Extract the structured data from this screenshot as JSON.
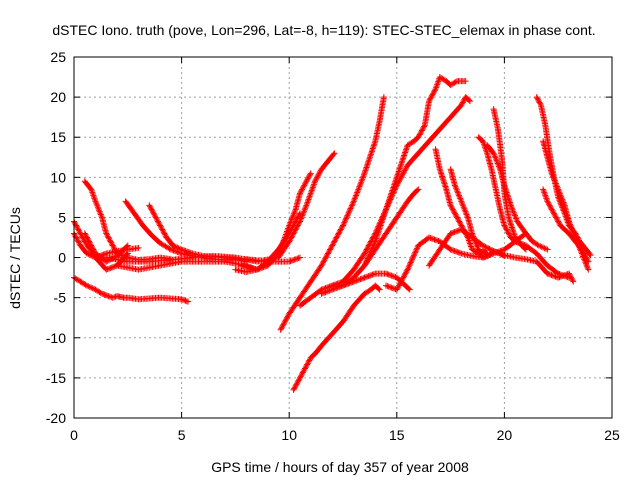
{
  "chart_data": {
    "type": "scatter",
    "title": "dSTEC Iono. truth (pove, Lon=296, Lat=-8, h=119): STEC-STEC_elemax in phase cont.",
    "xlabel": "GPS time / hours of day 357 of year 2008",
    "ylabel": "dSTEC  / TECUs",
    "xlim": [
      0,
      25
    ],
    "ylim": [
      -20,
      25
    ],
    "xticks": [
      0,
      5,
      10,
      15,
      20,
      25
    ],
    "yticks": [
      -20,
      -15,
      -10,
      -5,
      0,
      5,
      10,
      15,
      20,
      25
    ],
    "grid": true,
    "legend": "none",
    "marker": "plus",
    "color": "#ff0000",
    "series": [
      {
        "x": [
          0.0,
          0.3,
          0.6,
          1.0,
          1.5,
          2.0,
          2.5,
          3.0
        ],
        "y": [
          3.0,
          1.5,
          0.5,
          0.0,
          0.5,
          0.8,
          1.0,
          1.2
        ]
      },
      {
        "x": [
          0.0,
          0.5,
          1.0,
          1.5,
          2.0,
          2.5
        ],
        "y": [
          4.5,
          2.0,
          0.0,
          -1.5,
          -1.0,
          0.5
        ]
      },
      {
        "x": [
          0.5,
          1.0,
          1.5,
          2.0,
          2.5
        ],
        "y": [
          3.0,
          0.5,
          -0.5,
          0.2,
          1.5
        ]
      },
      {
        "x": [
          0.0,
          0.3,
          0.6,
          1.0,
          1.3,
          1.6,
          1.8,
          2.0,
          2.3,
          2.5,
          3.0,
          3.5,
          4.0,
          4.5,
          5.0,
          5.3
        ],
        "y": [
          -2.5,
          -3.0,
          -3.5,
          -4.0,
          -4.5,
          -4.8,
          -5.0,
          -4.8,
          -5.0,
          -5.0,
          -5.2,
          -5.1,
          -5.0,
          -5.1,
          -5.2,
          -5.5
        ]
      },
      {
        "x": [
          0.5,
          0.8,
          1.0,
          1.3,
          1.5,
          1.8,
          2.0,
          2.5,
          3.0,
          3.5,
          4.0,
          4.5
        ],
        "y": [
          9.5,
          8.5,
          7.0,
          5.0,
          3.0,
          1.5,
          0.5,
          0.0,
          -0.3,
          -0.2,
          0.0,
          -0.2
        ]
      },
      {
        "x": [
          2.4,
          2.8,
          3.2,
          3.6,
          4.0,
          4.5,
          5.0,
          5.5,
          6.0,
          6.5,
          7.0,
          7.5,
          8.0
        ],
        "y": [
          7.0,
          5.5,
          4.0,
          2.8,
          1.8,
          1.0,
          0.5,
          0.2,
          0.0,
          -0.2,
          -0.3,
          -0.2,
          -0.5
        ]
      },
      {
        "x": [
          3.5,
          3.8,
          4.0,
          4.3,
          4.6,
          5.0,
          5.5,
          6.0,
          7.0,
          8.0,
          9.0,
          10.0,
          10.5
        ],
        "y": [
          6.5,
          5.0,
          4.0,
          2.5,
          1.5,
          1.0,
          0.5,
          0.2,
          0.0,
          -0.2,
          -0.5,
          -0.5,
          0.0
        ]
      },
      {
        "x": [
          2.0,
          3.0,
          4.0,
          5.0,
          6.0,
          7.0,
          8.0,
          8.5
        ],
        "y": [
          -1.0,
          -1.5,
          -1.0,
          -0.5,
          -0.5,
          -0.5,
          -1.0,
          -1.5
        ]
      },
      {
        "x": [
          1.5,
          2.5,
          3.5,
          4.5,
          5.5,
          6.5,
          7.5,
          8.5,
          9.5,
          10.0,
          10.5,
          10.8,
          11.0,
          11.2,
          11.5,
          11.8,
          12.1
        ],
        "y": [
          0.0,
          -0.5,
          -0.5,
          -0.3,
          0.0,
          0.2,
          0.0,
          -0.5,
          0.0,
          2.0,
          4.5,
          6.5,
          8.0,
          9.5,
          11.0,
          12.0,
          13.0
        ]
      },
      {
        "x": [
          7.5,
          8.0,
          8.5,
          9.0,
          9.5,
          9.8,
          10.0,
          10.3,
          10.5,
          10.8,
          11.0
        ],
        "y": [
          -1.5,
          -1.8,
          -1.5,
          -1.0,
          0.5,
          2.5,
          4.0,
          6.0,
          8.0,
          9.5,
          10.5
        ]
      },
      {
        "x": [
          7.8,
          8.5,
          9.0,
          9.5,
          10.0,
          10.5
        ],
        "y": [
          -1.0,
          -1.5,
          -0.5,
          1.0,
          3.0,
          5.5
        ]
      },
      {
        "x": [
          9.6,
          10.0,
          10.5,
          11.0,
          11.5,
          12.0,
          12.5,
          13.0,
          13.5,
          14.0,
          14.2,
          14.4
        ],
        "y": [
          -9.0,
          -7.0,
          -5.0,
          -3.0,
          -1.0,
          1.5,
          4.0,
          7.0,
          10.5,
          14.5,
          17.0,
          20.0
        ]
      },
      {
        "x": [
          10.2,
          10.5,
          10.8,
          11.0,
          11.2,
          11.5,
          12.0,
          12.5,
          13.0,
          13.5,
          13.8,
          14.0,
          14.2
        ],
        "y": [
          -16.5,
          -15.0,
          -13.5,
          -12.5,
          -12.0,
          -11.0,
          -9.5,
          -8.0,
          -6.0,
          -4.5,
          -4.0,
          -3.5,
          -4.0
        ]
      },
      {
        "x": [
          10.5,
          11.0,
          11.5,
          12.0,
          12.5,
          13.0,
          13.5,
          14.0,
          14.5,
          15.0,
          15.2,
          15.4,
          15.6
        ],
        "y": [
          -6.0,
          -5.0,
          -4.0,
          -3.5,
          -3.5,
          -3.0,
          -2.5,
          -2.0,
          -2.0,
          -2.5,
          -3.0,
          -3.5,
          -4.0
        ]
      },
      {
        "x": [
          11.5,
          12.0,
          12.5,
          13.0,
          13.5,
          14.0,
          14.5,
          15.0,
          15.5,
          15.8,
          16.0
        ],
        "y": [
          -4.5,
          -4.0,
          -3.5,
          -2.5,
          -1.0,
          1.0,
          3.0,
          5.0,
          7.0,
          8.0,
          8.5
        ]
      },
      {
        "x": [
          12.0,
          12.5,
          13.0,
          13.5,
          14.0,
          14.5,
          15.0,
          15.5,
          16.0,
          16.5,
          17.0,
          17.5,
          18.0,
          18.2,
          18.4
        ],
        "y": [
          -3.5,
          -3.0,
          -1.5,
          0.5,
          3.0,
          6.0,
          9.0,
          11.5,
          13.0,
          14.5,
          16.0,
          17.5,
          19.0,
          20.0,
          19.5
        ]
      },
      {
        "x": [
          13.5,
          14.0,
          14.5,
          15.0,
          15.5,
          15.8,
          16.0,
          16.3,
          16.5,
          16.8,
          17.0,
          17.3,
          17.5,
          17.8,
          18.0,
          18.2
        ],
        "y": [
          -1.0,
          2.0,
          6.0,
          10.0,
          14.0,
          14.5,
          15.0,
          16.5,
          19.5,
          21.0,
          22.5,
          22.0,
          21.5,
          22.0,
          22.0,
          22.0
        ]
      },
      {
        "x": [
          14.5,
          15.0,
          15.5,
          16.0,
          16.5,
          17.0,
          17.5,
          18.0,
          18.5,
          19.0,
          19.5,
          20.0,
          20.5,
          21.0
        ],
        "y": [
          -3.5,
          -4.0,
          -1.5,
          1.5,
          2.5,
          2.0,
          1.0,
          0.5,
          0.2,
          0.0,
          0.5,
          1.0,
          2.0,
          3.0
        ]
      },
      {
        "x": [
          16.5,
          17.0,
          17.5,
          18.0,
          18.5,
          19.0,
          19.5,
          20.0,
          20.5,
          21.0,
          21.5,
          22.0,
          22.5,
          23.0,
          23.2
        ],
        "y": [
          -1.0,
          1.0,
          3.0,
          3.5,
          2.5,
          1.5,
          0.8,
          0.3,
          0.0,
          -0.2,
          -0.5,
          -2.0,
          -2.5,
          -2.0,
          -3.0
        ]
      },
      {
        "x": [
          16.8,
          17.0,
          17.3,
          17.5,
          17.8,
          18.0,
          18.3,
          18.5,
          18.8,
          19.0,
          19.2
        ],
        "y": [
          13.5,
          11.0,
          8.5,
          6.5,
          5.0,
          4.0,
          2.5,
          1.0,
          0.5,
          0.8,
          0.5
        ]
      },
      {
        "x": [
          17.5,
          17.7,
          18.0,
          18.3,
          18.5,
          18.8,
          19.0,
          19.3,
          19.5,
          19.8,
          20.0
        ],
        "y": [
          11.0,
          9.0,
          7.0,
          5.0,
          3.0,
          1.0,
          0.0,
          0.3,
          0.8,
          0.5,
          0.2
        ]
      },
      {
        "x": [
          18.8,
          19.0,
          19.2,
          19.4,
          19.6,
          19.8,
          20.0,
          20.3,
          20.5,
          21.0,
          21.5,
          22.0,
          22.5,
          23.0
        ],
        "y": [
          15.0,
          14.5,
          13.0,
          11.0,
          8.5,
          6.0,
          4.0,
          2.5,
          2.0,
          1.5,
          0.5,
          -1.0,
          -2.0,
          -2.5
        ]
      },
      {
        "x": [
          19.2,
          19.5,
          19.8,
          20.0,
          20.3,
          20.6,
          21.0,
          21.3,
          21.6,
          22.0
        ],
        "y": [
          14.0,
          13.0,
          11.0,
          9.0,
          6.5,
          4.5,
          3.0,
          2.0,
          1.5,
          1.0
        ]
      },
      {
        "x": [
          19.5,
          19.7,
          19.9,
          20.0,
          20.2,
          20.5,
          20.8,
          21.0
        ],
        "y": [
          18.5,
          16.0,
          12.0,
          8.0,
          5.0,
          2.5,
          1.5,
          1.0
        ]
      },
      {
        "x": [
          21.5,
          21.7,
          21.9,
          22.1,
          22.3,
          22.5,
          22.8,
          23.0,
          23.3,
          23.5,
          23.8,
          24.0
        ],
        "y": [
          20.0,
          19.0,
          16.5,
          13.0,
          10.0,
          7.5,
          5.5,
          4.0,
          3.0,
          2.0,
          1.0,
          0.3
        ]
      },
      {
        "x": [
          21.8,
          22.0,
          22.2,
          22.5,
          22.8,
          23.0,
          23.3,
          23.6,
          23.9
        ],
        "y": [
          14.5,
          12.5,
          10.5,
          8.5,
          6.5,
          4.5,
          2.5,
          0.5,
          -1.5
        ]
      },
      {
        "x": [
          21.8,
          22.0,
          22.3,
          22.6,
          23.0,
          23.3,
          23.6,
          23.9
        ],
        "y": [
          8.5,
          7.0,
          5.5,
          4.0,
          3.0,
          2.0,
          1.0,
          -0.5
        ]
      }
    ]
  }
}
